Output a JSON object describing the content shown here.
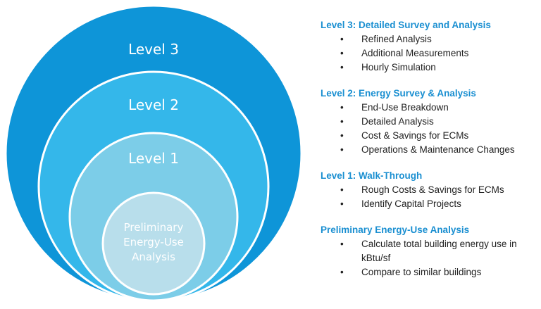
{
  "diagram": {
    "circles": [
      {
        "label": "Level 3"
      },
      {
        "label": "Level 2"
      },
      {
        "label": "Level 1"
      },
      {
        "label": "Preliminary Energy-Use Analysis"
      }
    ]
  },
  "sections": [
    {
      "heading": "Level 3: Detailed Survey and Analysis",
      "items": [
        "Refined Analysis",
        "Additional Measurements",
        "Hourly Simulation"
      ]
    },
    {
      "heading": "Level 2: Energy Survey & Analysis",
      "items": [
        "End-Use Breakdown",
        "Detailed Analysis",
        "Cost & Savings for ECMs",
        "Operations & Maintenance Changes"
      ]
    },
    {
      "heading": "Level 1: Walk-Through",
      "items": [
        "Rough Costs & Savings for ECMs",
        "Identify Capital Projects"
      ]
    },
    {
      "heading": "Preliminary Energy-Use Analysis",
      "items": [
        "Calculate total building energy use in kBtu/sf",
        "Compare to similar buildings"
      ]
    }
  ]
}
